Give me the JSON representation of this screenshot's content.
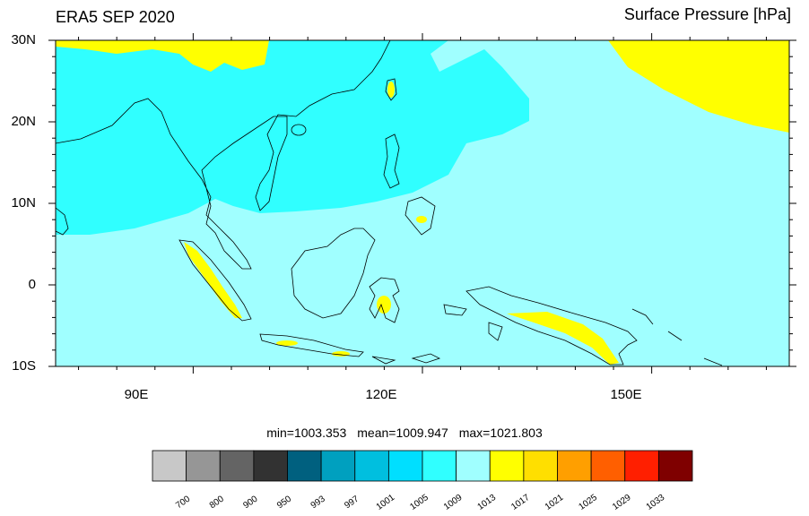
{
  "title_left": "ERA5 SEP 2020",
  "title_right": "Surface Pressure [hPa]",
  "axes": {
    "lat_labels": [
      "30N",
      "20N",
      "10N",
      "0",
      "10S"
    ],
    "lon_labels": [
      "90E",
      "120E",
      "150E"
    ]
  },
  "stats": {
    "min": "min=1003.353",
    "mean": "mean=1009.947",
    "max": "max=1021.803"
  },
  "colorbar": {
    "colors": [
      "#c8c8c8",
      "#969696",
      "#646464",
      "#323232",
      "#00607f",
      "#00a0bf",
      "#00bfdf",
      "#00dfff",
      "#30ffff",
      "#a0ffff",
      "#ffff00",
      "#ffdf00",
      "#ff9f00",
      "#ff5f00",
      "#ff1f00",
      "#7f0000"
    ],
    "labels": [
      "700",
      "800",
      "900",
      "950",
      "993",
      "997",
      "1001",
      "1005",
      "1009",
      "1013",
      "1017",
      "1021",
      "1025",
      "1029",
      "1033"
    ]
  },
  "map_colors": {
    "low": "#30ffff",
    "base": "#a0ffff",
    "high": "#ffff00",
    "mid_high": "#ffdf00",
    "very_high": "#ff9f00"
  }
}
